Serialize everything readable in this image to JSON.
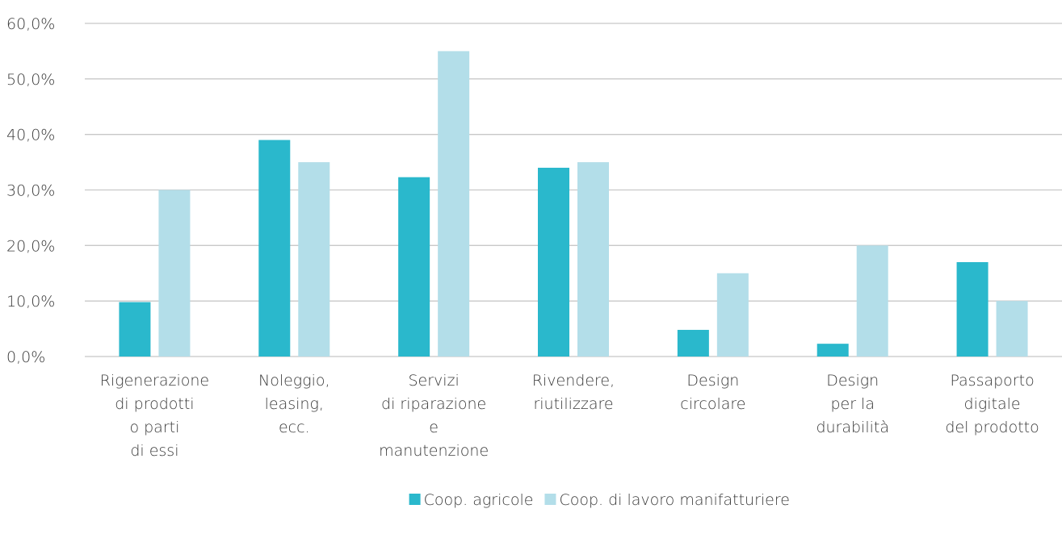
{
  "chart_data": {
    "type": "bar",
    "categories": [
      "Rigenerazione\ndi prodotti\no parti\ndi essi",
      "Noleggio,\nleasing,\necc.",
      "Servizi\ndi riparazione\ne\nmanutenzione",
      "Rivendere,\nriutilizzare",
      "Design\ncircolare",
      "Design\nper la\ndurabilità",
      "Passaporto\ndigitale\ndel prodotto"
    ],
    "series": [
      {
        "name": "Coop. agricole",
        "color": "#2ab8cc",
        "values": [
          9.8,
          39,
          32.3,
          34,
          4.8,
          2.3,
          17
        ]
      },
      {
        "name": "Coop. di lavoro manifatturiere",
        "color": "#b3dee9",
        "values": [
          30,
          35,
          55,
          35,
          15,
          20,
          10
        ]
      }
    ],
    "ylim": [
      0,
      60
    ],
    "yticks": [
      {
        "value": 0,
        "label": "0,0%"
      },
      {
        "value": 10,
        "label": "10,0%"
      },
      {
        "value": 20,
        "label": "20,0%"
      },
      {
        "value": 30,
        "label": "30,0%"
      },
      {
        "value": 40,
        "label": "40,0%"
      },
      {
        "value": 50,
        "label": "50,0%"
      },
      {
        "value": 60,
        "label": "60,0%"
      }
    ],
    "grid": true,
    "legend": "bottom"
  }
}
